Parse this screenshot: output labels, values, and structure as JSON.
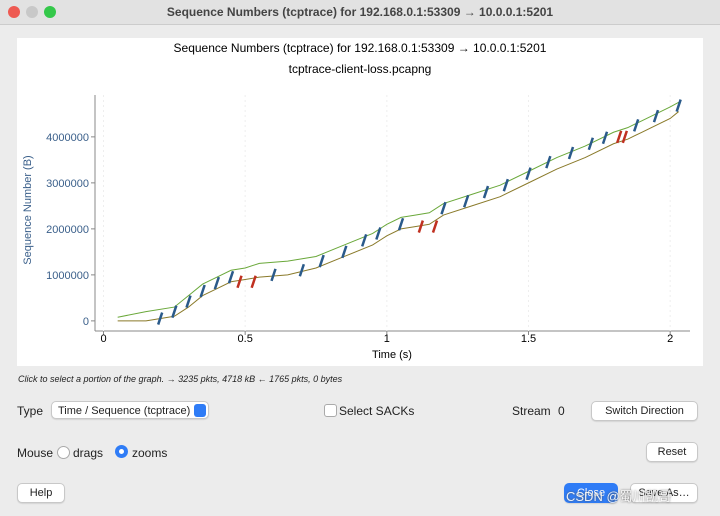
{
  "window": {
    "title": "Sequence Numbers (tcptrace) for 192.168.0.1:53309 → 10.0.0.1:5201"
  },
  "graph": {
    "type": "tcptrace",
    "title": "Sequence Numbers (tcptrace) for 192.168.0.1:53309 → 10.0.0.1:5201",
    "subtitle": "tcptrace-client-loss.pcapng",
    "xlabel": "Time (s)",
    "ylabel": "Sequence Number (B)",
    "xlim": [
      -0.03,
      2.07
    ],
    "xticks": [
      0,
      0.5,
      1,
      1.5,
      2
    ],
    "ylim": [
      -220000,
      4910000
    ],
    "yticks": [
      0,
      1000000,
      2000000,
      3000000,
      4000000
    ],
    "series": [
      {
        "style": "line",
        "color": "#6aa83a",
        "x": [
          0.05,
          0.15,
          0.25,
          0.3,
          0.35,
          0.4,
          0.45,
          0.5,
          0.55,
          0.65,
          0.75,
          0.85,
          0.95,
          1.0,
          1.05,
          1.1,
          1.15,
          1.2,
          1.3,
          1.4,
          1.5,
          1.6,
          1.7,
          1.8,
          1.85,
          1.9,
          2.0,
          2.03
        ],
        "values": [
          80000,
          200000,
          300000,
          550000,
          800000,
          950000,
          1100000,
          1150000,
          1250000,
          1300000,
          1400000,
          1650000,
          1900000,
          2100000,
          2250000,
          2300000,
          2350000,
          2550000,
          2750000,
          2950000,
          3250000,
          3550000,
          3800000,
          4100000,
          4200000,
          4350000,
          4650000,
          4750000
        ]
      },
      {
        "style": "line",
        "color": "#8a7a2a",
        "x": [
          0.05,
          0.15,
          0.25,
          0.3,
          0.35,
          0.4,
          0.45,
          0.5,
          0.55,
          0.65,
          0.75,
          0.85,
          0.95,
          1.0,
          1.05,
          1.1,
          1.15,
          1.2,
          1.3,
          1.4,
          1.5,
          1.6,
          1.7,
          1.8,
          1.85,
          1.9,
          2.0,
          2.03
        ],
        "values": [
          0,
          0,
          100000,
          300000,
          550000,
          700000,
          850000,
          900000,
          950000,
          1000000,
          1150000,
          1400000,
          1650000,
          1850000,
          2000000,
          2050000,
          2100000,
          2300000,
          2500000,
          2700000,
          3000000,
          3300000,
          3550000,
          3850000,
          3950000,
          4100000,
          4400000,
          4550000
        ]
      },
      {
        "style": "marks",
        "color": "#2a5a8a",
        "x": [
          0.2,
          0.25,
          0.3,
          0.35,
          0.4,
          0.45,
          0.6,
          0.7,
          0.77,
          0.85,
          0.92,
          0.97,
          1.05,
          1.2,
          1.28,
          1.35,
          1.42,
          1.5,
          1.57,
          1.65,
          1.72,
          1.77,
          1.88,
          1.95,
          2.03
        ],
        "values": [
          50000,
          200000,
          420000,
          650000,
          820000,
          950000,
          1000000,
          1100000,
          1300000,
          1500000,
          1750000,
          1900000,
          2100000,
          2450000,
          2600000,
          2800000,
          2950000,
          3200000,
          3450000,
          3650000,
          3850000,
          3980000,
          4250000,
          4450000,
          4680000
        ]
      },
      {
        "style": "marks",
        "color": "#c03020",
        "x": [
          0.48,
          0.53,
          1.12,
          1.17,
          1.82,
          1.84
        ],
        "values": [
          850000,
          850000,
          2050000,
          2050000,
          4000000,
          4000000
        ]
      }
    ]
  },
  "status": "Click to select a portion of the graph. → 3235 pkts, 4718 kB ← 1765 pkts, 0 bytes",
  "controls": {
    "type_label": "Type",
    "type_value": "Time / Sequence (tcptrace)",
    "sacks": "Select SACKs",
    "stream_label": "Stream",
    "stream_value": "0",
    "switch": "Switch Direction",
    "mouse_label": "Mouse",
    "drags": "drags",
    "zooms": "zooms",
    "reset": "Reset",
    "help": "Help",
    "close": "Close",
    "save": "Save As…"
  },
  "watermark": "CSDN @蜀川凯哥"
}
